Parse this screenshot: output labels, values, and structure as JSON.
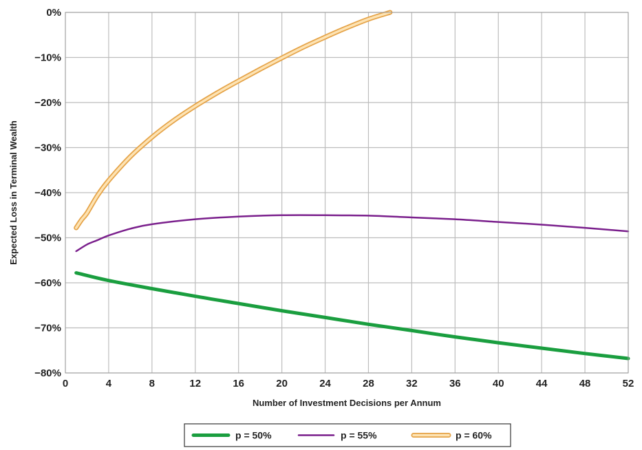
{
  "chart_data": {
    "type": "line",
    "xlabel": "Number of Investment Decisions per Annum",
    "ylabel": "Expected Loss in Terminal Wealth",
    "xlim": [
      0,
      52
    ],
    "ylim": [
      -80,
      0
    ],
    "xticks": [
      0,
      4,
      8,
      12,
      16,
      20,
      24,
      28,
      32,
      36,
      40,
      44,
      48,
      52
    ],
    "xtick_labels": [
      "0",
      "4",
      "8",
      "12",
      "16",
      "20",
      "24",
      "28",
      "32",
      "36",
      "40",
      "44",
      "48",
      "52"
    ],
    "yticks": [
      0,
      -10,
      -20,
      -30,
      -40,
      -50,
      -60,
      -70,
      -80
    ],
    "ytick_labels": [
      "0%",
      "−10%",
      "−20%",
      "−30%",
      "−40%",
      "−50%",
      "−60%",
      "−70%",
      "−80%"
    ],
    "grid": true,
    "legend_position": "bottom",
    "series": [
      {
        "name": "p = 50%",
        "color": "#1a9e3f",
        "style": "thick",
        "x": [
          1,
          4,
          8,
          12,
          16,
          20,
          24,
          28,
          32,
          36,
          40,
          44,
          48,
          52
        ],
        "y": [
          -57.8,
          -59.5,
          -61.3,
          -63.0,
          -64.6,
          -66.2,
          -67.7,
          -69.2,
          -70.6,
          -72.0,
          -73.3,
          -74.5,
          -75.7,
          -76.8
        ]
      },
      {
        "name": "p = 55%",
        "color": "#7a1f8c",
        "style": "thin",
        "x": [
          1,
          2,
          3,
          4,
          6,
          8,
          12,
          16,
          20,
          24,
          28,
          32,
          36,
          40,
          44,
          48,
          52
        ],
        "y": [
          -53.0,
          -51.5,
          -50.5,
          -49.5,
          -48.0,
          -47.0,
          -45.9,
          -45.3,
          -45.0,
          -45.0,
          -45.1,
          -45.5,
          -45.9,
          -46.5,
          -47.1,
          -47.8,
          -48.6
        ]
      },
      {
        "name": "p = 60%",
        "color": "#f5b55c",
        "style": "double",
        "x": [
          1,
          1.5,
          2,
          3,
          4,
          6,
          8,
          10,
          12,
          14,
          16,
          18,
          20,
          22,
          24,
          26,
          28,
          30
        ],
        "y": [
          -47.8,
          -46.0,
          -44.5,
          -40.5,
          -37.3,
          -32.0,
          -27.7,
          -24.0,
          -20.8,
          -17.9,
          -15.2,
          -12.6,
          -10.1,
          -7.7,
          -5.5,
          -3.4,
          -1.5,
          0.0
        ]
      }
    ]
  }
}
